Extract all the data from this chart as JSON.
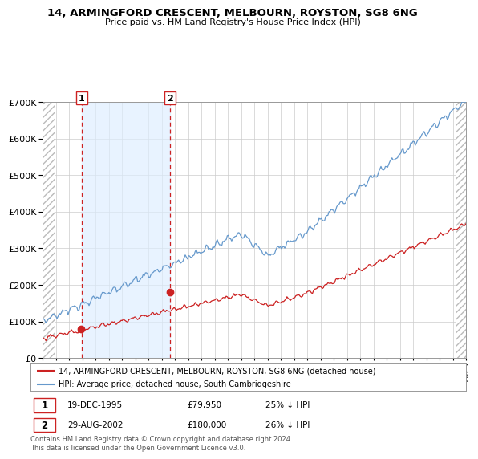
{
  "title": "14, ARMINGFORD CRESCENT, MELBOURN, ROYSTON, SG8 6NG",
  "subtitle": "Price paid vs. HM Land Registry's House Price Index (HPI)",
  "hpi_label": "HPI: Average price, detached house, South Cambridgeshire",
  "property_label": "14, ARMINGFORD CRESCENT, MELBOURN, ROYSTON, SG8 6NG (detached house)",
  "transaction1_date": "19-DEC-1995",
  "transaction1_price": "£79,950",
  "transaction1_hpi": "25% ↓ HPI",
  "transaction2_date": "29-AUG-2002",
  "transaction2_price": "£180,000",
  "transaction2_hpi": "26% ↓ HPI",
  "footer": "Contains HM Land Registry data © Crown copyright and database right 2024.\nThis data is licensed under the Open Government Licence v3.0.",
  "hpi_color": "#6699cc",
  "property_color": "#cc2222",
  "ylim_max": 700000,
  "title_fontsize": 9.5,
  "subtitle_fontsize": 8
}
